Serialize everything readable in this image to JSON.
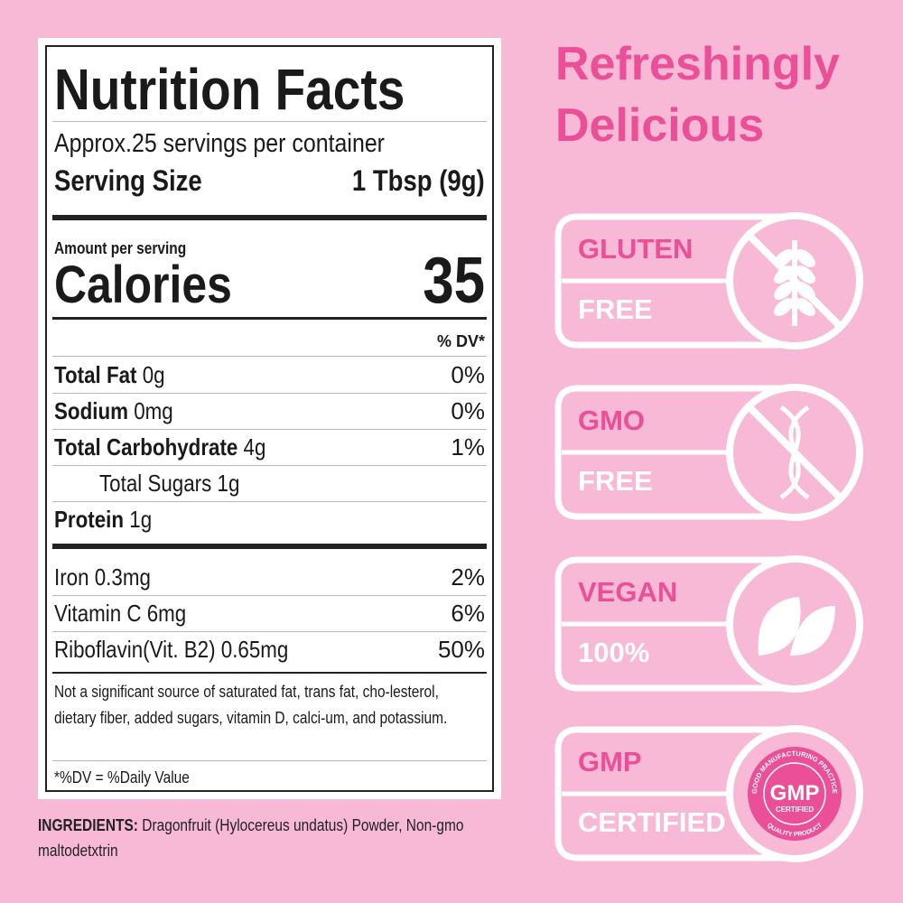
{
  "nutrition": {
    "title": "Nutrition Facts",
    "servings": "Approx.25 servings per container",
    "serving_size_label": "Serving Size",
    "serving_size_value": "1 Tbsp (9g)",
    "amount_per_serving": "Amount per serving",
    "calories_label": "Calories",
    "calories_value": 35,
    "dv_header": "% DV*",
    "nutrients": [
      {
        "name": "Total Fat",
        "amount": "0g",
        "dv": "0%"
      },
      {
        "name": "Sodium",
        "amount": "0mg",
        "dv": "0%"
      },
      {
        "name": "Total Carbohydrate",
        "amount": "4g",
        "dv": "1%"
      },
      {
        "name": "Total Sugars",
        "amount": "1g"
      },
      {
        "name": "Protein",
        "amount": "1g"
      }
    ],
    "vitamins": [
      {
        "name": "Iron 0.3mg",
        "dv": "2%"
      },
      {
        "name": "Vitamin C 6mg",
        "dv": "6%"
      },
      {
        "name": "Riboflavin(Vit. B2) 0.65mg",
        "dv": "50%"
      }
    ],
    "footnote": "Not a significant source of saturated fat, trans fat, cho-lesterol, dietary fiber, added sugars, vitamin D, calci-um, and potassium.",
    "dv_note": "*%DV = %Daily Value"
  },
  "ingredients": {
    "label": "INGREDIENTS:",
    "text": "Dragonfruit (Hylocereus undatus) Powder, Non-gmo maltodetxtrin"
  },
  "headline": [
    "Refreshingly",
    "Delicious"
  ],
  "badges": [
    {
      "top": "GLUTEN",
      "bottom": "FREE"
    },
    {
      "top": "GMO",
      "bottom": "FREE"
    },
    {
      "top": "VEGAN",
      "bottom": "100%"
    },
    {
      "top": "GMP",
      "bottom": "CERTIFIED"
    }
  ],
  "gmp_seal": {
    "center": "GMP",
    "sub": "CERTIFIED",
    "ring_top": "GOOD MANUFACTURING PRACTICE",
    "ring_bottom": "QUALITY PRODUCT"
  }
}
